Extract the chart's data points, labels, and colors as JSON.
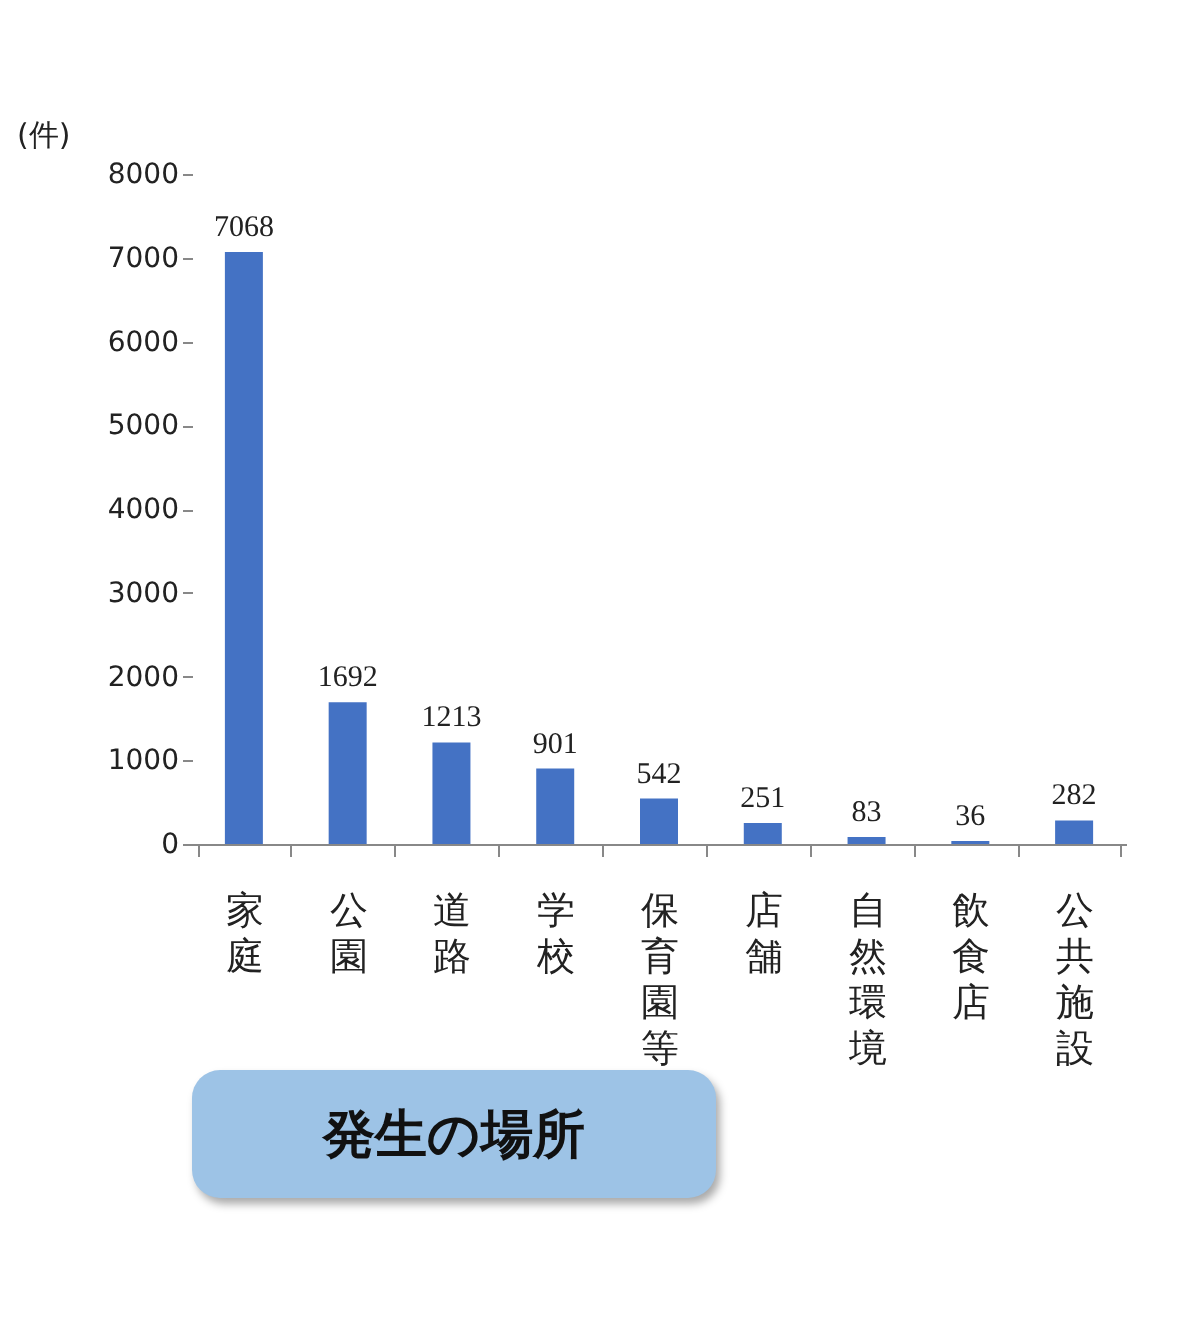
{
  "chart_data": {
    "type": "bar",
    "title": "発生の場所",
    "ylabel": "(件)",
    "categories": [
      "家庭",
      "公園",
      "道路",
      "学校",
      "保育園等",
      "店舗",
      "自然環境",
      "飲食店",
      "公共施設"
    ],
    "values": [
      7068,
      1692,
      1213,
      901,
      542,
      251,
      83,
      36,
      282
    ],
    "color": "#4472c4",
    "ylim": [
      0,
      8000
    ],
    "yticks": [
      0,
      1000,
      2000,
      3000,
      4000,
      5000,
      6000,
      7000,
      8000
    ],
    "grid": false,
    "data_labels": true
  }
}
